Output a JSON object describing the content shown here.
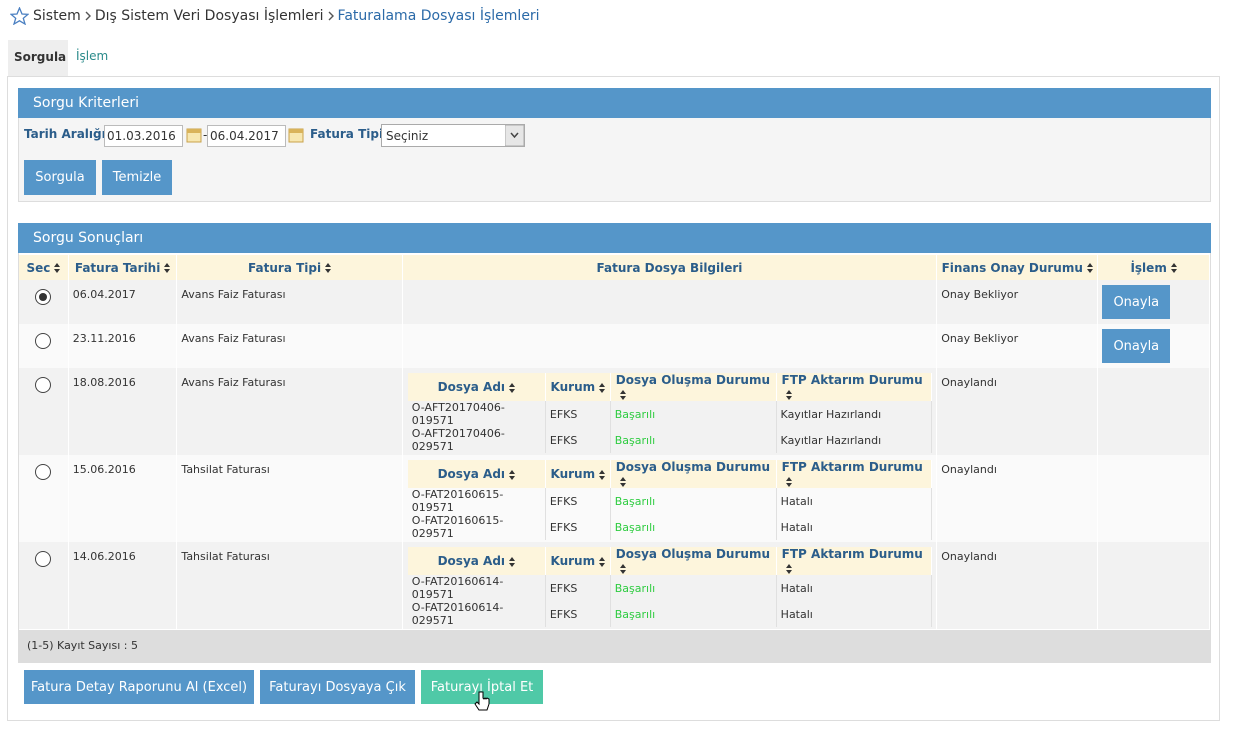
{
  "breadcrumb": {
    "items": [
      "Sistem",
      "Dış Sistem Veri Dosyası İşlemleri",
      "Faturalama Dosyası İşlemleri"
    ]
  },
  "tabs": [
    "Sorgula",
    "İşlem"
  ],
  "criteria": {
    "title": "Sorgu Kriterleri",
    "date_label": "Tarih Aralığı",
    "date_from": "01.03.2016",
    "date_separator": "-",
    "date_to": "06.04.2017",
    "type_label": "Fatura Tipi",
    "type_value": "Seçiniz",
    "buttons": [
      "Sorgula",
      "Temizle"
    ]
  },
  "results": {
    "title": "Sorgu Sonuçları",
    "columns": [
      "Sec",
      "Fatura Tarihi",
      "Fatura Tipi",
      "Fatura Dosya Bilgileri",
      "Finans Onay Durumu",
      "İşlem"
    ],
    "file_columns": [
      "Dosya Adı",
      "Kurum",
      "Dosya Oluşma Durumu",
      "FTP Aktarım Durumu"
    ],
    "rows": [
      {
        "selected": true,
        "date": "06.04.2017",
        "type": "Avans Faiz Faturası",
        "files": [],
        "status": "Onay Bekliyor",
        "action": "Onayla"
      },
      {
        "selected": false,
        "date": "23.11.2016",
        "type": "Avans Faiz Faturası",
        "files": [],
        "status": "Onay Bekliyor",
        "action": "Onayla"
      },
      {
        "selected": false,
        "date": "18.08.2016",
        "type": "Avans Faiz Faturası",
        "files": [
          {
            "name": "O-AFT20170406-019571",
            "org": "EFKS",
            "created": "Başarılı",
            "ftp": "Kayıtlar Hazırlandı"
          },
          {
            "name": "O-AFT20170406-029571",
            "org": "EFKS",
            "created": "Başarılı",
            "ftp": "Kayıtlar Hazırlandı"
          }
        ],
        "status": "Onaylandı"
      },
      {
        "selected": false,
        "date": "15.06.2016",
        "type": "Tahsilat Faturası",
        "files": [
          {
            "name": "O-FAT20160615-019571",
            "org": "EFKS",
            "created": "Başarılı",
            "ftp": "Hatalı"
          },
          {
            "name": "O-FAT20160615-029571",
            "org": "EFKS",
            "created": "Başarılı",
            "ftp": "Hatalı"
          }
        ],
        "status": "Onaylandı"
      },
      {
        "selected": false,
        "date": "14.06.2016",
        "type": "Tahsilat Faturası",
        "files": [
          {
            "name": "O-FAT20160614-019571",
            "org": "EFKS",
            "created": "Başarılı",
            "ftp": "Hatalı"
          },
          {
            "name": "O-FAT20160614-029571",
            "org": "EFKS",
            "created": "Başarılı",
            "ftp": "Hatalı"
          }
        ],
        "status": "Onaylandı"
      }
    ],
    "footer": "(1-5) Kayıt Sayısı : 5"
  },
  "actions": [
    "Fatura Detay Raporunu Al (Excel)",
    "Faturayı Dosyaya Çık",
    "Faturayı İptal Et"
  ]
}
